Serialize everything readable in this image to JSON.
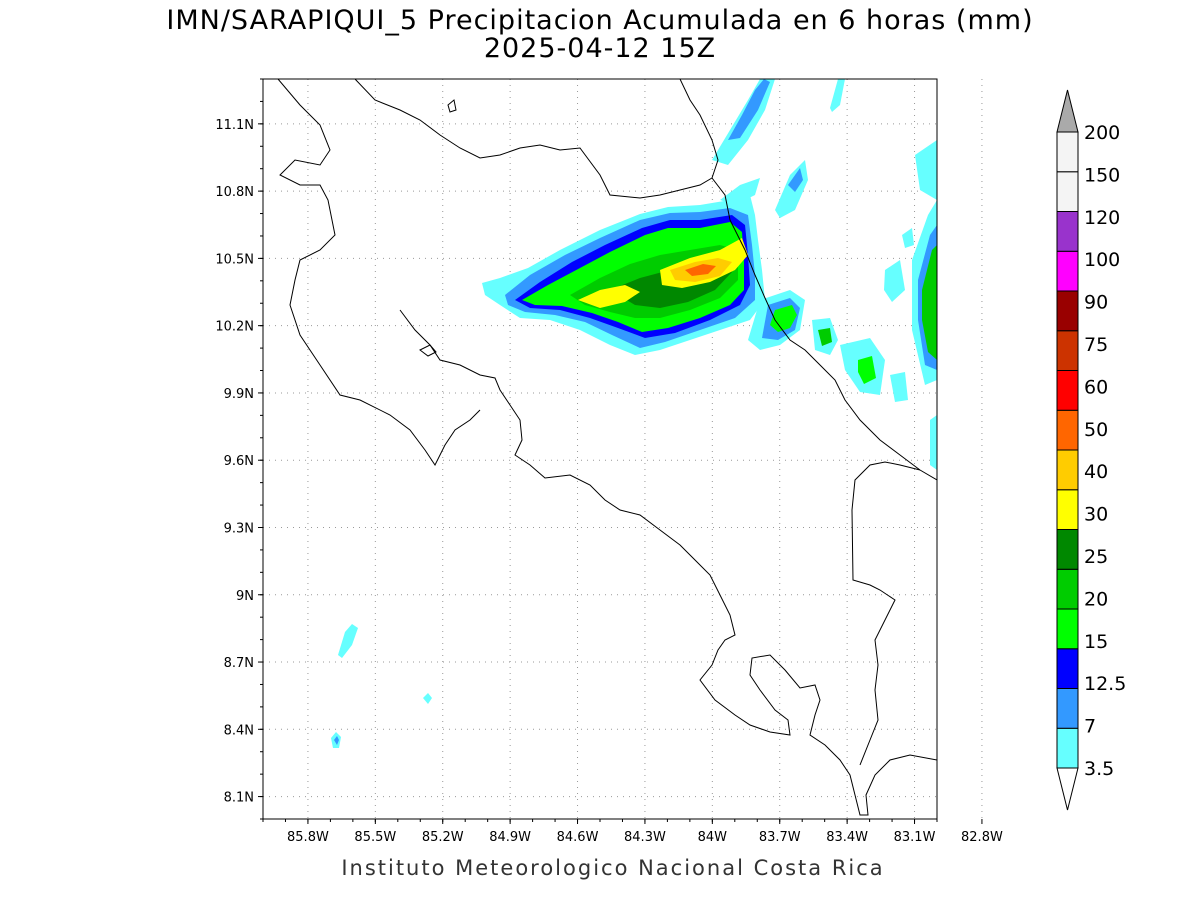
{
  "title": "IMN/SARAPIQUI_5 Precipitacion Acumulada en 6 horas (mm)",
  "subtitle": "2025-04-12 15Z",
  "footer": "Instituto Meteorologico Nacional Costa Rica",
  "map": {
    "lon_range": [
      -86.0,
      -83.0
    ],
    "lat_range": [
      8.0,
      11.3
    ],
    "lon_ticks": [
      {
        "value": -85.8,
        "label": "85.8W"
      },
      {
        "value": -85.5,
        "label": "85.5W"
      },
      {
        "value": -85.2,
        "label": "85.2W"
      },
      {
        "value": -84.9,
        "label": "84.9W"
      },
      {
        "value": -84.6,
        "label": "84.6W"
      },
      {
        "value": -84.3,
        "label": "84.3W"
      },
      {
        "value": -84.0,
        "label": "84W"
      },
      {
        "value": -83.7,
        "label": "83.7W"
      },
      {
        "value": -83.4,
        "label": "83.4W"
      },
      {
        "value": -83.1,
        "label": "83.1W"
      },
      {
        "value": -82.8,
        "label": "82.8W"
      }
    ],
    "lat_ticks": [
      {
        "value": 11.1,
        "label": "11.1N"
      },
      {
        "value": 10.8,
        "label": "10.8N"
      },
      {
        "value": 10.5,
        "label": "10.5N"
      },
      {
        "value": 10.2,
        "label": "10.2N"
      },
      {
        "value": 9.9,
        "label": "9.9N"
      },
      {
        "value": 9.6,
        "label": "9.6N"
      },
      {
        "value": 9.3,
        "label": "9.3N"
      },
      {
        "value": 9.0,
        "label": "9N"
      },
      {
        "value": 8.7,
        "label": "8.7N"
      },
      {
        "value": 8.4,
        "label": "8.4N"
      },
      {
        "value": 8.1,
        "label": "8.1N"
      }
    ],
    "grid": true
  },
  "colorbar": {
    "levels": [
      "3.5",
      "7",
      "12.5",
      "15",
      "20",
      "25",
      "30",
      "40",
      "50",
      "60",
      "75",
      "90",
      "100",
      "120",
      "150",
      "200"
    ],
    "colors": [
      "#66ffff",
      "#3399ff",
      "#0000ff",
      "#00ff00",
      "#00cc00",
      "#008800",
      "#ffff00",
      "#ffcc00",
      "#ff6600",
      "#ff0000",
      "#cc3300",
      "#990000",
      "#ff00ff",
      "#9933cc",
      "#f4f4f4",
      "#aaaaaa"
    ]
  }
}
